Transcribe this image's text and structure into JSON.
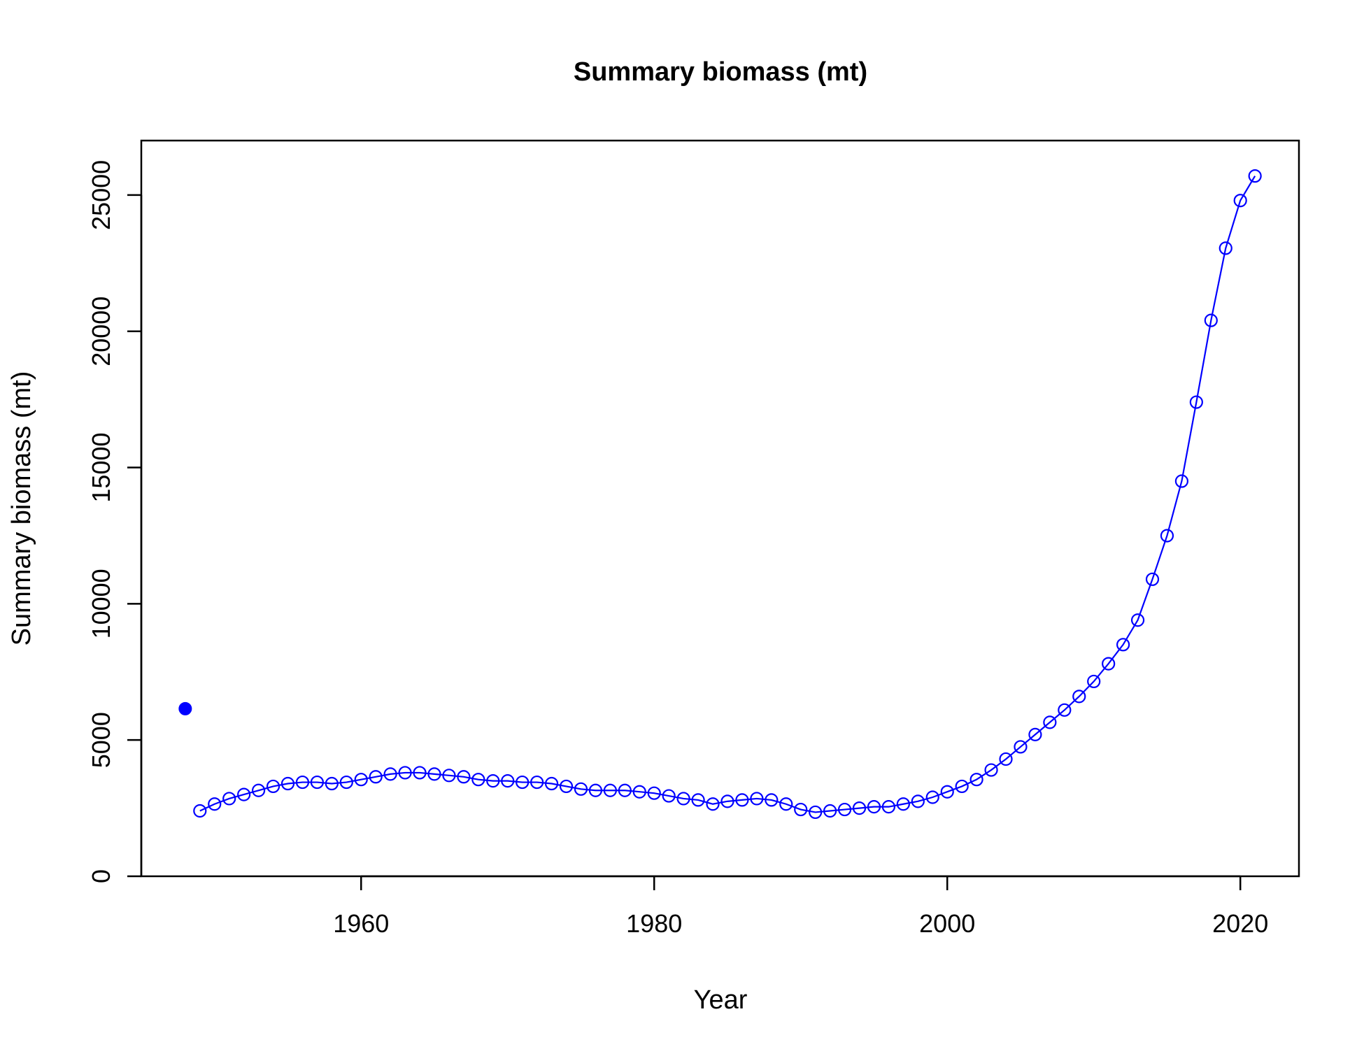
{
  "chart_data": {
    "type": "line",
    "title": "Summary biomass (mt)",
    "xlabel": "Year",
    "ylabel": "Summary biomass (mt)",
    "xlim": [
      1945,
      2024
    ],
    "ylim": [
      0,
      27000
    ],
    "xticks": [
      1960,
      1980,
      2000,
      2020
    ],
    "xtick_labels": [
      "1960",
      "1980",
      "2000",
      "2020"
    ],
    "yticks": [
      0,
      5000,
      10000,
      15000,
      20000,
      25000
    ],
    "ytick_labels": [
      "0",
      "5000",
      "10000",
      "15000",
      "20000",
      "25000"
    ],
    "color": "#0000ff",
    "grid": false,
    "initial_point": {
      "x": 1948,
      "y": 6150
    },
    "series": [
      {
        "x": [
          1949,
          1950,
          1951,
          1952,
          1953,
          1954,
          1955,
          1956,
          1957,
          1958,
          1959,
          1960,
          1961,
          1962,
          1963,
          1964,
          1965,
          1966,
          1967,
          1968,
          1969,
          1970,
          1971,
          1972,
          1973,
          1974,
          1975,
          1976,
          1977,
          1978,
          1979,
          1980,
          1981,
          1982,
          1983,
          1984,
          1985,
          1986,
          1987,
          1988,
          1989,
          1990,
          1991,
          1992,
          1993,
          1994,
          1995,
          1996,
          1997,
          1998,
          1999,
          2000,
          2001,
          2002,
          2003,
          2004,
          2005,
          2006,
          2007,
          2008,
          2009,
          2010,
          2011,
          2012,
          2013,
          2014,
          2015,
          2016,
          2017,
          2018,
          2019,
          2020,
          2021
        ],
        "values": [
          2400,
          2650,
          2850,
          3000,
          3150,
          3300,
          3400,
          3450,
          3450,
          3400,
          3450,
          3550,
          3650,
          3750,
          3800,
          3800,
          3750,
          3700,
          3650,
          3550,
          3500,
          3500,
          3450,
          3450,
          3400,
          3300,
          3200,
          3150,
          3150,
          3150,
          3100,
          3050,
          2950,
          2850,
          2800,
          2650,
          2750,
          2800,
          2850,
          2800,
          2650,
          2450,
          2350,
          2400,
          2450,
          2500,
          2550,
          2550,
          2650,
          2750,
          2900,
          3100,
          3300,
          3550,
          3900,
          4300,
          4750,
          5200,
          5650,
          6100,
          6600,
          7150,
          7800,
          8500,
          9400,
          10900,
          12500,
          14500,
          17400,
          20400,
          23050,
          24800,
          25700
        ]
      }
    ]
  }
}
